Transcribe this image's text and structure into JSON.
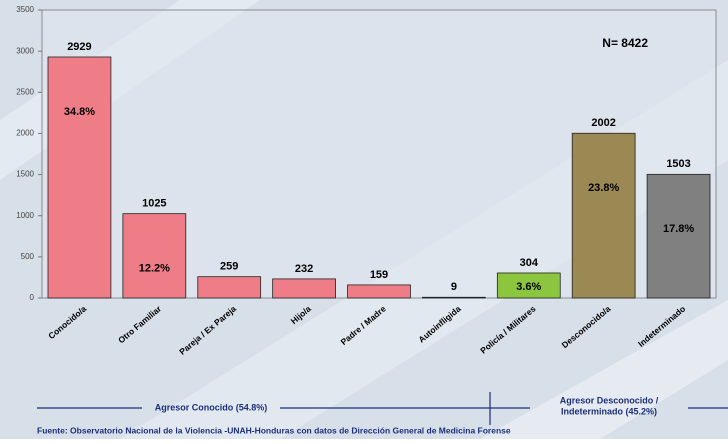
{
  "chart_data": {
    "type": "bar",
    "categories": [
      "Conocido/a",
      "Otro Familiar",
      "Pareja / Ex Pareja",
      "Hijo/a",
      "Padre / Madre",
      "Autoinfligida",
      "Policía / Militares",
      "Desconocido/a",
      "Indeterminado"
    ],
    "values": [
      2929,
      1025,
      259,
      232,
      159,
      9,
      304,
      2002,
      1503
    ],
    "colors": [
      "#ef7d87",
      "#ef7d87",
      "#ef7d87",
      "#ef7d87",
      "#ef7d87",
      "#ef7d87",
      "#8cc63e",
      "#9a8953",
      "#808080"
    ],
    "percentages": [
      34.8,
      12.2,
      null,
      null,
      null,
      null,
      3.6,
      23.8,
      17.8
    ],
    "percentage_labels": [
      "34.8%",
      "12.2%",
      null,
      null,
      null,
      null,
      "3.6%",
      "23.8%",
      "17.8%"
    ],
    "ylim": [
      0,
      3500
    ],
    "yticks": [
      0,
      500,
      1000,
      1500,
      2000,
      2500,
      3000,
      3500
    ],
    "annotation": "N= 8422",
    "groups": [
      "Agresor Conocido (54.8%)",
      "Agresor Desconocido /",
      "Indeterminado (45.2%)"
    ],
    "source": "Fuente: Observatorio Nacional de la Violencia -UNAH-Honduras con datos de Dirección General de Medicina Forense"
  }
}
